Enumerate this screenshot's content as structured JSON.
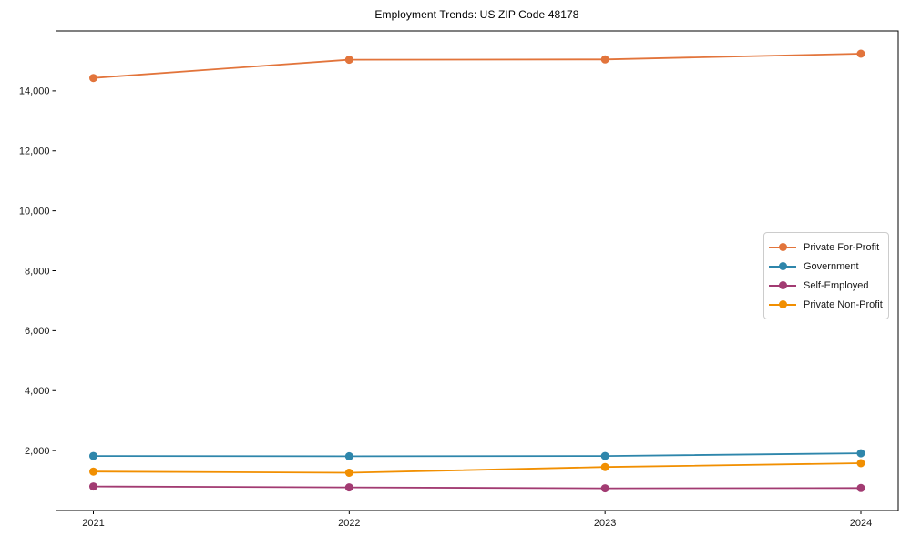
{
  "title": "Employment Trends: US ZIP Code 48178",
  "chart_data": {
    "type": "line",
    "x": [
      2021,
      2022,
      2023,
      2024
    ],
    "x_tick_labels": [
      "2021",
      "2022",
      "2023",
      "2024"
    ],
    "series": [
      {
        "name": "Private For-Profit",
        "color": "#E2743B",
        "values": [
          14430,
          15040,
          15050,
          15240
        ]
      },
      {
        "name": "Government",
        "color": "#2E86AB",
        "values": [
          1820,
          1810,
          1820,
          1910
        ]
      },
      {
        "name": "Self-Employed",
        "color": "#A23B72",
        "values": [
          800,
          770,
          740,
          750
        ]
      },
      {
        "name": "Private Non-Profit",
        "color": "#F18F01",
        "values": [
          1300,
          1260,
          1450,
          1580
        ]
      }
    ],
    "title": "Employment Trends: US ZIP Code 48178",
    "xlabel": "",
    "ylabel": "",
    "ylim": [
      0,
      16000
    ],
    "yticks": [
      2000,
      4000,
      6000,
      8000,
      10000,
      12000,
      14000
    ],
    "y_tick_labels": [
      "2,000",
      "4,000",
      "6,000",
      "8,000",
      "10,000",
      "12,000",
      "14,000"
    ],
    "grid": false,
    "marker": "circle",
    "legend_position": "center-right"
  },
  "colors": {
    "background": "#ffffff",
    "spine": "#000000",
    "tick_label": "#1a1a1a",
    "legend_border": "#cccccc"
  }
}
